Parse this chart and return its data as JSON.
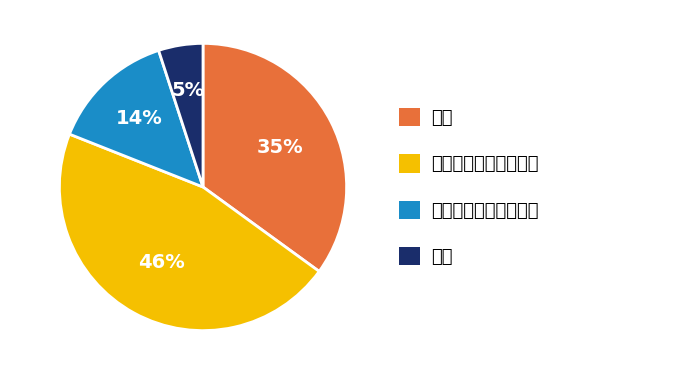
{
  "labels": [
    "賛成",
    "どちらかといえば賛成",
    "どちらかと言えば反対",
    "反対"
  ],
  "values": [
    35,
    46,
    14,
    5
  ],
  "colors": [
    "#E8703A",
    "#F5C000",
    "#1A8DC8",
    "#1A2D6B"
  ],
  "pct_labels": [
    "35%",
    "46%",
    "14%",
    "5%"
  ],
  "pct_colors": [
    "white",
    "white",
    "white",
    "white"
  ],
  "startangle": 90,
  "label_fontsize": 14,
  "legend_fontsize": 13,
  "background_color": "#ffffff"
}
